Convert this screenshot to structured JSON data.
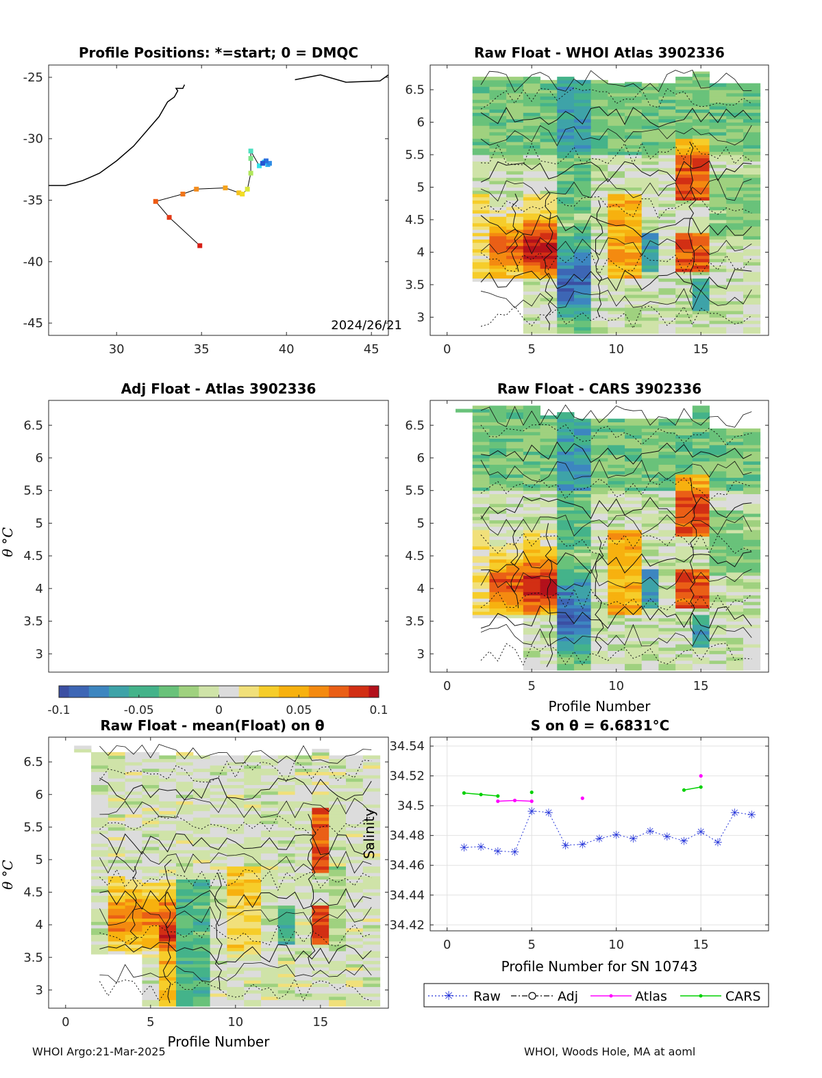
{
  "chart_data": [
    {
      "id": "map",
      "type": "scatter",
      "title": "Profile Positions: *=start; 0 = DMQC",
      "xlim": [
        26,
        46
      ],
      "ylim": [
        -46,
        -24
      ],
      "xticks": [
        30,
        35,
        40,
        45
      ],
      "yticks": [
        -25,
        -30,
        -35,
        -40,
        -45
      ],
      "annotation": "2024/26/21",
      "coastline": [
        [
          26,
          -33.8
        ],
        [
          27,
          -33.8
        ],
        [
          28,
          -33.4
        ],
        [
          29,
          -32.8
        ],
        [
          30,
          -31.8
        ],
        [
          31,
          -30.6
        ],
        [
          32,
          -29.0
        ],
        [
          32.5,
          -28.2
        ],
        [
          33,
          -27.0
        ],
        [
          33.4,
          -26.6
        ],
        [
          33.6,
          -26.1
        ],
        [
          33.5,
          -25.9
        ],
        [
          33.9,
          -25.9
        ],
        [
          34,
          -25.6
        ]
      ],
      "coastline2": [
        [
          40.5,
          -25.2
        ],
        [
          42,
          -24.8
        ],
        [
          43.5,
          -25.4
        ],
        [
          45.5,
          -25.3
        ],
        [
          46,
          -24.8
        ]
      ],
      "track": [
        [
          34.9,
          -38.7
        ],
        [
          33.1,
          -36.4
        ],
        [
          32.3,
          -35.1
        ],
        [
          33.9,
          -34.5
        ],
        [
          34.7,
          -34.1
        ],
        [
          36.4,
          -34.0
        ],
        [
          37.2,
          -34.4
        ],
        [
          37.4,
          -34.5
        ],
        [
          37.7,
          -34.1
        ],
        [
          37.9,
          -32.8
        ],
        [
          37.9,
          -31.6
        ],
        [
          37.9,
          -31.0
        ],
        [
          38.4,
          -32.2
        ],
        [
          38.7,
          -31.9
        ],
        [
          38.9,
          -32.1
        ],
        [
          39.0,
          -32.0
        ],
        [
          38.8,
          -31.8
        ],
        [
          38.6,
          -32.0
        ]
      ]
    },
    {
      "id": "heat1",
      "type": "heatmap",
      "title": "Raw Float - WHOI Atlas  3902336",
      "xlim": [
        -1,
        19
      ],
      "ylim": [
        2.72,
        6.88
      ],
      "xticks": [
        0,
        5,
        10,
        15
      ],
      "yticks": [
        3,
        3.5,
        4,
        4.5,
        5,
        5.5,
        6,
        6.5
      ],
      "profiles": [
        2,
        3,
        4,
        5,
        6,
        7,
        8,
        9,
        10,
        11,
        12,
        13,
        14,
        15,
        16,
        17,
        18
      ],
      "theta_max": [
        6.7,
        6.7,
        6.7,
        6.7,
        6.65,
        6.7,
        6.65,
        6.65,
        6.6,
        6.62,
        6.6,
        6.6,
        6.7,
        6.78,
        6.6,
        6.6,
        6.6
      ],
      "theta_min": [
        3.55,
        3.55,
        3.55,
        2.75,
        2.75,
        2.75,
        2.75,
        2.75,
        2.75,
        2.75,
        2.75,
        2.75,
        2.75,
        2.75,
        2.75,
        2.75,
        2.75
      ]
    },
    {
      "id": "heat2",
      "type": "heatmap",
      "title": "Adj Float - Atlas  3902336",
      "ylabel": "θ °C",
      "xlim": [
        -1,
        19
      ],
      "ylim": [
        2.72,
        6.88
      ],
      "yticks": [
        3,
        3.5,
        4,
        4.5,
        5,
        5.5,
        6,
        6.5
      ],
      "empty": true
    },
    {
      "id": "heat3",
      "type": "heatmap",
      "title": "Raw Float - CARS  3902336",
      "xlabel": "Profile Number",
      "xlim": [
        -1,
        19
      ],
      "ylim": [
        2.72,
        6.88
      ],
      "xticks": [
        0,
        5,
        10,
        15
      ],
      "yticks": [
        3,
        3.5,
        4,
        4.5,
        5,
        5.5,
        6,
        6.5
      ],
      "profiles": [
        1,
        2,
        3,
        4,
        5,
        6,
        7,
        8,
        9,
        10,
        11,
        12,
        13,
        14,
        15,
        16,
        17,
        18
      ],
      "theta_max": [
        6.75,
        6.8,
        6.8,
        6.8,
        6.8,
        6.65,
        6.7,
        6.6,
        6.6,
        6.6,
        6.6,
        6.6,
        6.6,
        6.6,
        6.8,
        6.45,
        6.45,
        6.45
      ],
      "theta_min": [
        6.7,
        3.55,
        3.55,
        3.55,
        2.75,
        2.75,
        2.75,
        2.75,
        2.75,
        2.75,
        2.75,
        2.75,
        2.75,
        2.75,
        2.75,
        2.75,
        2.75,
        2.75
      ]
    },
    {
      "id": "heat4",
      "type": "heatmap",
      "title": "Raw Float - mean(Float) on θ",
      "ylabel": "θ °C",
      "xlabel": "Profile Number",
      "xlim": [
        -1,
        19
      ],
      "ylim": [
        2.72,
        6.88
      ],
      "xticks": [
        0,
        5,
        10,
        15
      ],
      "yticks": [
        3,
        3.5,
        4,
        4.5,
        5,
        5.5,
        6,
        6.5
      ],
      "profiles": [
        1,
        2,
        3,
        4,
        5,
        6,
        7,
        8,
        9,
        10,
        11,
        12,
        13,
        14,
        15,
        16,
        17,
        18
      ],
      "theta_max": [
        6.75,
        6.65,
        6.65,
        6.65,
        6.65,
        6.6,
        6.65,
        6.6,
        6.6,
        6.6,
        6.6,
        6.6,
        6.6,
        6.6,
        6.7,
        6.6,
        6.6,
        6.6
      ],
      "theta_min": [
        6.65,
        3.55,
        3.55,
        3.55,
        2.75,
        2.75,
        2.75,
        2.75,
        2.75,
        2.75,
        2.75,
        2.75,
        2.75,
        2.75,
        2.75,
        2.75,
        2.75,
        2.75
      ]
    },
    {
      "id": "salinity",
      "type": "line",
      "title": "S on θ = 6.6831°C",
      "xlabel": "Profile Number for SN 10743",
      "ylabel": "Salinity",
      "xlim": [
        -1,
        19
      ],
      "ylim": [
        34.416,
        34.546
      ],
      "xticks": [
        0,
        5,
        10,
        15
      ],
      "yticks": [
        34.42,
        34.44,
        34.46,
        34.48,
        34.5,
        34.52,
        34.54
      ],
      "grid": true,
      "legend": "bottom",
      "series": [
        {
          "name": "Raw",
          "color": "#1f2fd8",
          "x": [
            1,
            2,
            3,
            4,
            5,
            6,
            7,
            8,
            9,
            10,
            11,
            12,
            13,
            14,
            15,
            16,
            17,
            18
          ],
          "values": [
            34.472,
            34.4725,
            34.4695,
            34.469,
            34.4965,
            34.4955,
            34.4735,
            34.474,
            34.478,
            34.4805,
            34.478,
            34.483,
            34.4795,
            34.4765,
            34.4825,
            34.4755,
            34.4955,
            34.494
          ]
        },
        {
          "name": "Adj",
          "color": "#000000",
          "x": [],
          "values": []
        },
        {
          "name": "Atlas",
          "color": "#ff00ff",
          "segments": [
            [
              [
                3,
                34.503
              ],
              [
                4,
                34.5035
              ],
              [
                5,
                34.503
              ]
            ],
            [
              [
                8,
                34.505
              ]
            ],
            [
              [
                15,
                34.52
              ]
            ]
          ]
        },
        {
          "name": "CARS",
          "color": "#00d000",
          "segments": [
            [
              [
                1,
                34.5085
              ],
              [
                2,
                34.5075
              ],
              [
                3,
                34.5065
              ]
            ],
            [
              [
                5,
                34.509
              ]
            ],
            [
              [
                14,
                34.5105
              ],
              [
                15,
                34.5125
              ]
            ]
          ]
        }
      ]
    }
  ],
  "colorbar": {
    "ticks": [
      "-0.1",
      "-0.05",
      "0",
      "0.05",
      "0.1"
    ],
    "colors": [
      "#3b4fa3",
      "#3d66b5",
      "#3d86c0",
      "#3ea3a8",
      "#44b38a",
      "#69c27a",
      "#9fd17f",
      "#cfe3a8",
      "#dcdcdc",
      "#f1e07a",
      "#f6cd2a",
      "#f7b10f",
      "#f48a10",
      "#ea5f16",
      "#d22f14",
      "#b3111b"
    ]
  },
  "footer": {
    "left": "WHOI Argo:21-Mar-2025",
    "right": "WHOI, Woods Hole, MA at aoml"
  }
}
